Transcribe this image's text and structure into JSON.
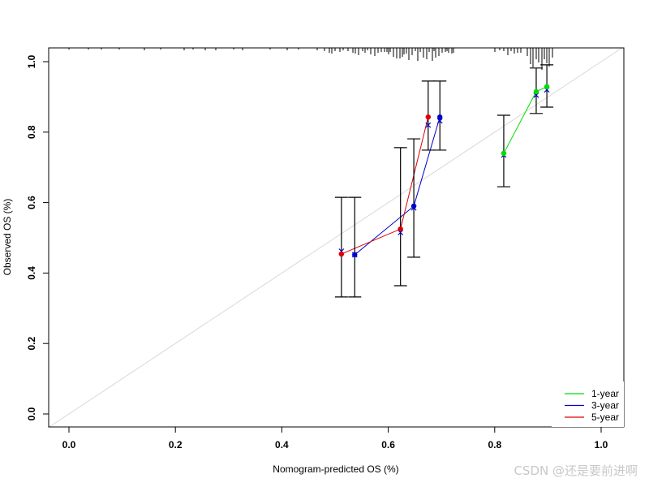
{
  "chart_data": {
    "type": "line",
    "subtype": "calibration_plot",
    "title": "",
    "xlabel": "Nomogram-predicted OS (%)",
    "ylabel": "Observed OS (%)",
    "xlim": [
      -0.04,
      1.04
    ],
    "ylim": [
      -0.04,
      1.04
    ],
    "x_ticks": [
      "0.0",
      "0.2",
      "0.4",
      "0.6",
      "0.8",
      "1.0"
    ],
    "y_ticks": [
      "0.0",
      "0.2",
      "0.4",
      "0.6",
      "0.8",
      "1.0"
    ],
    "grid": false,
    "reference_line": {
      "from": [
        0,
        0
      ],
      "to": [
        1,
        1
      ],
      "color": "#d9d9d9"
    },
    "legend": {
      "position": "bottom-right",
      "entries": [
        "1-year",
        "3-year",
        "5-year"
      ]
    },
    "series": [
      {
        "name": "1-year",
        "color": "#00dd00",
        "x": [
          0.817,
          0.878,
          0.898
        ],
        "y": [
          0.74,
          0.915,
          0.929
        ],
        "ci_low": [
          0.645,
          0.853,
          0.871
        ],
        "ci_high": [
          0.848,
          0.982,
          0.991
        ],
        "bias_corrected_y": [
          0.735,
          0.905,
          0.92
        ]
      },
      {
        "name": "3-year",
        "color": "#0000cc",
        "x": [
          0.537,
          0.648,
          0.697
        ],
        "y": [
          0.452,
          0.59,
          0.843
        ],
        "ci_low": [
          0.332,
          0.445,
          0.749
        ],
        "ci_high": [
          0.615,
          0.781,
          0.945
        ],
        "bias_corrected_y": [
          0.452,
          0.585,
          0.832
        ]
      },
      {
        "name": "5-year",
        "color": "#dd0000",
        "x": [
          0.512,
          0.623,
          0.675
        ],
        "y": [
          0.454,
          0.525,
          0.843
        ],
        "ci_low": [
          0.332,
          0.364,
          0.749
        ],
        "ci_high": [
          0.615,
          0.756,
          0.945
        ],
        "bias_corrected_y": [
          0.462,
          0.515,
          0.82
        ]
      }
    ],
    "rug_top": {
      "description": "distribution of predicted values shown as tick marks hanging from top border",
      "dense_ranges": [
        [
          0.55,
          0.72
        ],
        [
          0.85,
          0.9
        ]
      ]
    }
  },
  "watermark": "CSDN @还是要前进啊"
}
